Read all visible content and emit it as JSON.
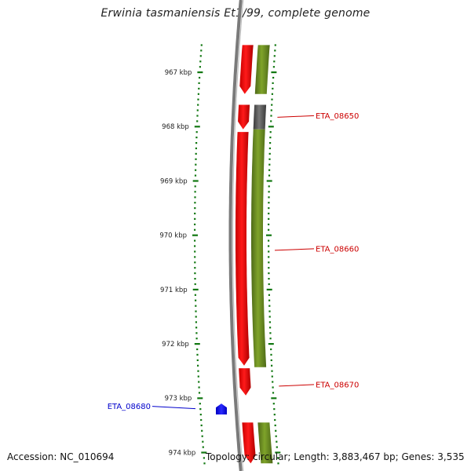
{
  "title": "Erwinia tasmaniensis Et1/99, complete genome",
  "footer": {
    "accession": "Accession: NC_010694",
    "summary": "Topology: circular; Length: 3,883,467 bp; Genes: 3,535"
  },
  "colors": {
    "forward_gene": "#ff0000",
    "forward_gene_dark": "#c80000",
    "cds_track": "#6b8e23",
    "cds_track_dark": "#4e6a18",
    "pseudo_cds": "#555555",
    "reverse_gene": "#0000ff",
    "scale": "#117711",
    "backbone": "#7a7a7a"
  },
  "scale": {
    "unit": "kbp",
    "ticks": [
      {
        "kbp": 967,
        "label": "967 kbp"
      },
      {
        "kbp": 968,
        "label": "968 kbp"
      },
      {
        "kbp": 969,
        "label": "969 kbp"
      },
      {
        "kbp": 970,
        "label": "970 kbp"
      },
      {
        "kbp": 971,
        "label": "971 kbp"
      },
      {
        "kbp": 972,
        "label": "972 kbp"
      },
      {
        "kbp": 973,
        "label": "973 kbp"
      },
      {
        "kbp": 974,
        "label": "974 kbp"
      }
    ]
  },
  "forward_genes": [
    {
      "start_kbp": 966.5,
      "end_kbp": 967.4
    },
    {
      "start_kbp": 967.6,
      "end_kbp": 968.05
    },
    {
      "start_kbp": 968.1,
      "end_kbp": 972.4
    },
    {
      "start_kbp": 972.45,
      "end_kbp": 972.95
    },
    {
      "start_kbp": 973.45,
      "end_kbp": 974.2
    }
  ],
  "cds_features": [
    {
      "start_kbp": 966.5,
      "end_kbp": 967.4,
      "pseudo": false
    },
    {
      "start_kbp": 967.6,
      "end_kbp": 968.05,
      "pseudo": true
    },
    {
      "start_kbp": 968.05,
      "end_kbp": 972.43,
      "pseudo": false
    },
    {
      "start_kbp": 973.45,
      "end_kbp": 974.2,
      "pseudo": false
    }
  ],
  "reverse_genes": [
    {
      "start_kbp": 973.1,
      "end_kbp": 973.3
    }
  ],
  "labels": [
    {
      "text": "ETA_08650",
      "kbp": 967.8,
      "side": "right",
      "color": "#cc0000"
    },
    {
      "text": "ETA_08660",
      "kbp": 970.25,
      "side": "right",
      "color": "#cc0000"
    },
    {
      "text": "ETA_08670",
      "kbp": 972.75,
      "side": "right",
      "color": "#cc0000"
    },
    {
      "text": "ETA_08680",
      "kbp": 973.15,
      "side": "left",
      "color": "#0000cc"
    }
  ]
}
